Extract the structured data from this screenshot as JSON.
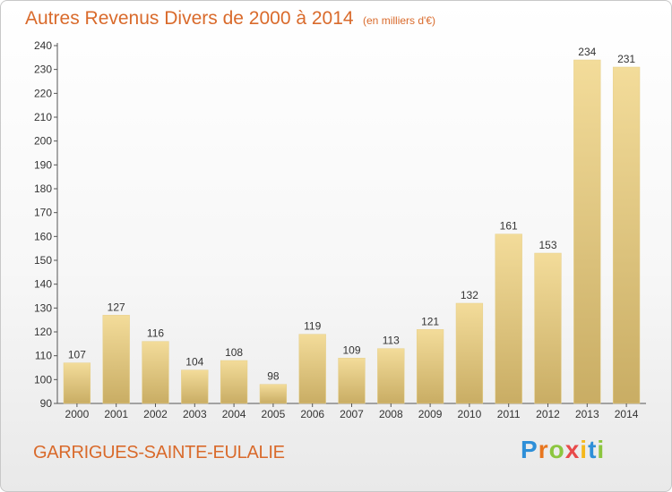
{
  "header": {
    "title": "Autres Revenus Divers de 2000 à 2014",
    "unit": "(en milliers d'€)"
  },
  "footer": {
    "commune": "GARRIGUES-SAINTE-EULALIE",
    "logo": "Proxiti"
  },
  "colors": {
    "title": "#d96a2b",
    "bar_light": "#f3dc9a",
    "bar_dark": "#c9ad64",
    "logo": [
      "#2e8fd8",
      "#e8761f",
      "#8cc63f",
      "#e84a4a",
      "#f5b81c",
      "#2e8fd8",
      "#8cc63f"
    ]
  },
  "chart_data": {
    "type": "bar",
    "title": "Autres Revenus Divers de 2000 à 2014",
    "subtitle": "(en milliers d'€)",
    "xlabel": "",
    "ylabel": "",
    "categories": [
      "2000",
      "2001",
      "2002",
      "2003",
      "2004",
      "2005",
      "2006",
      "2007",
      "2008",
      "2009",
      "2010",
      "2011",
      "2012",
      "2013",
      "2014"
    ],
    "values": [
      107,
      127,
      116,
      104,
      108,
      98,
      119,
      109,
      113,
      121,
      132,
      161,
      153,
      234,
      231
    ],
    "ylim": [
      90,
      240
    ],
    "yticks": [
      90,
      100,
      110,
      120,
      130,
      140,
      150,
      160,
      170,
      180,
      190,
      200,
      210,
      220,
      230,
      240
    ],
    "grid": false,
    "legend": "none"
  }
}
